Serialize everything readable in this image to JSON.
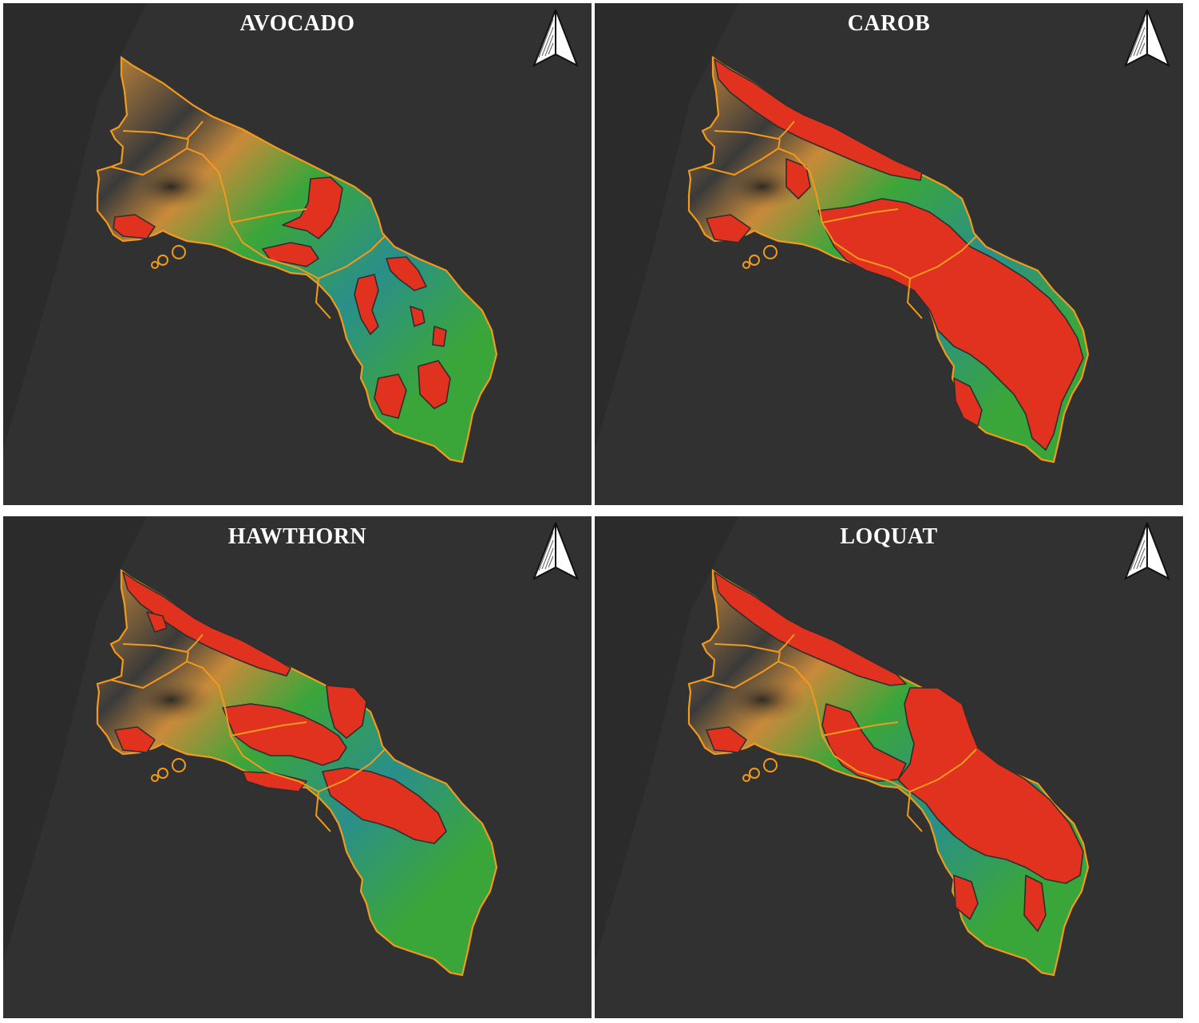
{
  "panels": [
    {
      "title": "AVOCADO"
    },
    {
      "title": "CAROB"
    },
    {
      "title": "HAWTHORN"
    },
    {
      "title": "LOQUAT"
    }
  ],
  "icons": {
    "north_arrow": "north-arrow-icon"
  },
  "colors": {
    "background": "#313131",
    "sea_shadow": "#2b2b2b",
    "boundary": "#f39a1c",
    "suitable_area": "#e0321e",
    "suitable_outline": "#2e2e2e",
    "elevation_low": "#2a8f8a",
    "elevation_mid": "#3aa63a",
    "elevation_high": "#c98a3a",
    "elevation_peak": "#3a3a3a"
  }
}
